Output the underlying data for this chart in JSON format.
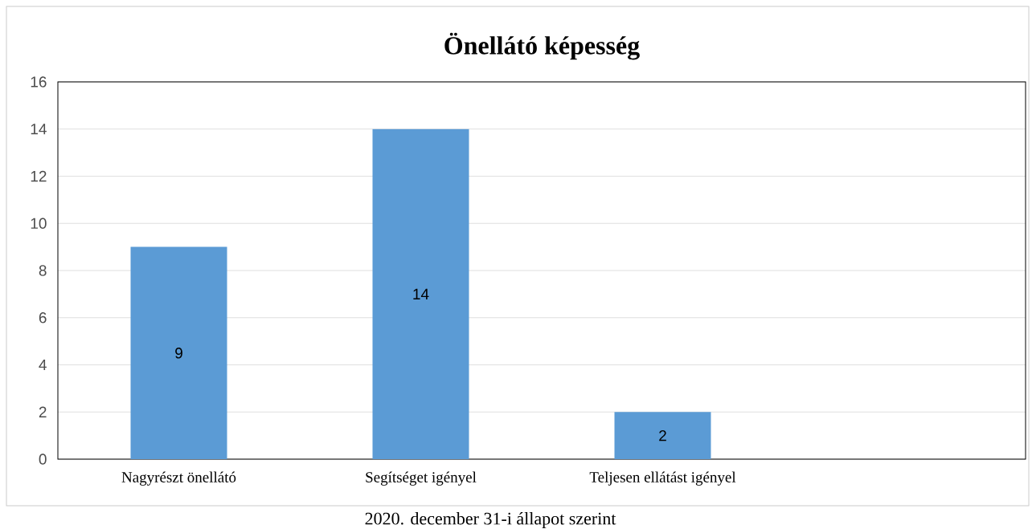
{
  "chart_data": {
    "type": "bar",
    "title": "Önellátó képesség",
    "categories": [
      "Nagyrészt önellátó",
      "Segítséget igényel",
      "Teljesen ellátást igényel",
      null
    ],
    "values": [
      9,
      14,
      2,
      null
    ],
    "color": "#5b9bd5",
    "ylim": [
      0,
      16
    ],
    "yticks": [
      0,
      2,
      4,
      6,
      8,
      10,
      12,
      14,
      16
    ],
    "grid": "y",
    "data_labels": true,
    "annotations": [
      "2020. december 31-i állapot szerint"
    ]
  }
}
